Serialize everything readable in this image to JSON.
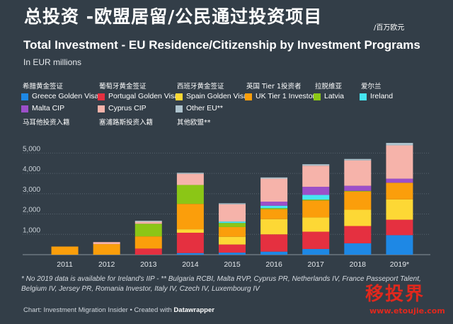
{
  "header": {
    "title_zh": "总投资 -欧盟居留/公民通过投资项目",
    "unit_zh": "/百万欧元",
    "title_en": "Total Investment - EU Residence/Citizenship by Investment Programs",
    "subtitle": "In EUR millions"
  },
  "legend": [
    {
      "zh": "希腊黄金签证",
      "en": "Greece Golden Visa",
      "color": "#1e88e5"
    },
    {
      "zh": "葡萄牙黄金签证",
      "en": "Portugal Golden Visa",
      "color": "#e53040"
    },
    {
      "zh": "西班牙黄金签证",
      "en": "Spain Golden Visa",
      "color": "#fdd835"
    },
    {
      "zh": "英国 Tier 1投资者",
      "en": "UK Tier 1 Investor",
      "color": "#fb9e0b"
    },
    {
      "zh": "拉脱维亚",
      "en": "Latvia",
      "color": "#8bc616"
    },
    {
      "zh": "爱尔兰",
      "en": "Ireland",
      "color": "#45e6f2"
    },
    {
      "zh": "马耳他投资入籍",
      "en": "Malta CIP",
      "color": "#9c4fc9"
    },
    {
      "zh": "塞浦路斯投资入籍",
      "en": "Cyprus CIP",
      "color": "#f6b3aa"
    },
    {
      "zh": "其他欧盟**",
      "en": "Other EU**",
      "color": "#aec3cd"
    }
  ],
  "chart_data": {
    "type": "bar",
    "stacked": true,
    "categories": [
      "2011",
      "2012",
      "2013",
      "2014",
      "2015",
      "2016",
      "2017",
      "2018",
      "2019*"
    ],
    "ylim": [
      0,
      5500
    ],
    "yticks": [
      1000,
      2000,
      3000,
      4000,
      5000
    ],
    "ytick_labels": [
      "1,000",
      "2,000",
      "3,000",
      "4,000",
      "5,000"
    ],
    "grid": true,
    "series": [
      {
        "name": "Greece Golden Visa",
        "values": [
          0,
          0,
          0,
          80,
          100,
          150,
          280,
          560,
          960
        ]
      },
      {
        "name": "Portugal Golden Visa",
        "values": [
          0,
          0,
          300,
          1000,
          400,
          850,
          850,
          850,
          760
        ]
      },
      {
        "name": "Spain Golden Visa",
        "values": [
          0,
          0,
          0,
          170,
          380,
          750,
          700,
          800,
          1000
        ]
      },
      {
        "name": "UK Tier 1 Investor",
        "values": [
          400,
          520,
          600,
          1250,
          480,
          480,
          840,
          900,
          820
        ]
      },
      {
        "name": "Latvia",
        "values": [
          0,
          0,
          620,
          930,
          200,
          60,
          40,
          30,
          0
        ]
      },
      {
        "name": "Ireland",
        "values": [
          0,
          0,
          0,
          0,
          70,
          120,
          230,
          0,
          0
        ]
      },
      {
        "name": "Malta CIP",
        "values": [
          0,
          0,
          0,
          0,
          0,
          200,
          400,
          250,
          200
        ]
      },
      {
        "name": "Cyprus CIP",
        "values": [
          0,
          100,
          100,
          550,
          850,
          1130,
          1040,
          1250,
          1640
        ]
      },
      {
        "name": "Other EU**",
        "values": [
          0,
          0,
          50,
          50,
          50,
          60,
          70,
          70,
          120
        ]
      }
    ]
  },
  "footnote": "* No 2019 data is available for Ireland's IIP - ** Bulgaria RCBI, Malta RVP, Cyprus PR, Netherlands IV, France Passeport Talent, Belgium IV, Jersey PR, Romania Investor, Italy IV, Czech IV, Luxembourg IV",
  "credit": {
    "prefix": "Chart: Investment Migration Insider • Created with ",
    "brand": "Datawrapper"
  },
  "watermark": {
    "zh": "移投界",
    "url": "www.etoujie.com"
  }
}
